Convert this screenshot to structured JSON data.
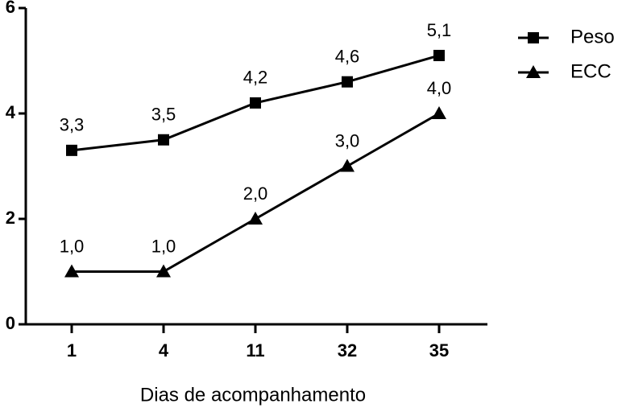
{
  "chart_data": {
    "type": "line",
    "x_label": "Dias de acompanhamento",
    "categories": [
      "1",
      "4",
      "11",
      "32",
      "35"
    ],
    "series": [
      {
        "name": "Peso",
        "color": "#000000",
        "marker": "square",
        "values": [
          3.3,
          3.5,
          4.2,
          4.6,
          5.1
        ],
        "value_labels": [
          "3,3",
          "3,5",
          "4,2",
          "4,6",
          "5,1"
        ]
      },
      {
        "name": "ECC",
        "color": "#000000",
        "marker": "triangle",
        "values": [
          1.0,
          1.0,
          2.0,
          3.0,
          4.0
        ],
        "value_labels": [
          "1,0",
          "1,0",
          "2,0",
          "3,0",
          "4,0"
        ]
      }
    ],
    "ylim": [
      0,
      6
    ],
    "yticks": [
      0,
      2,
      4,
      6
    ],
    "grid": false,
    "legend": "right"
  }
}
